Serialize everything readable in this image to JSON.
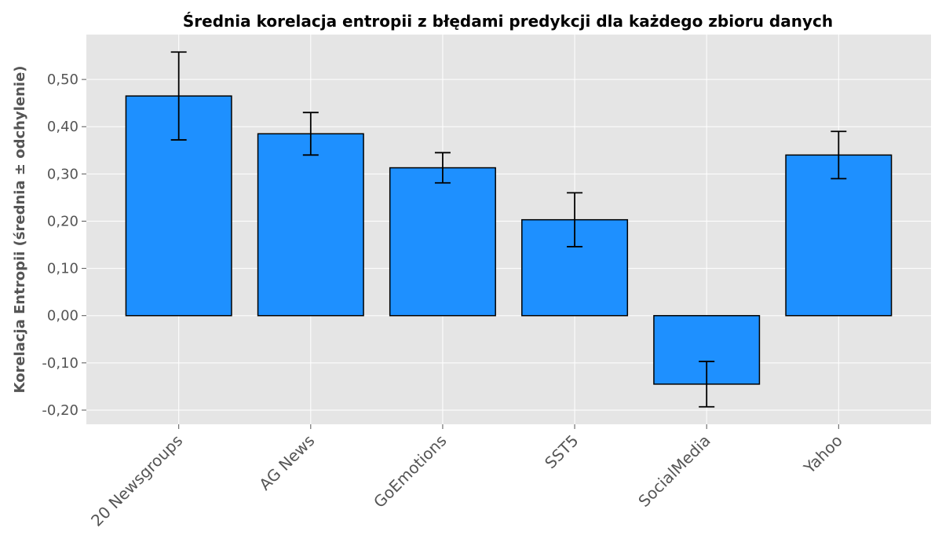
{
  "chart_data": {
    "type": "bar",
    "title": "Średnia korelacja entropii z błędami predykcji dla każdego zbioru danych",
    "xlabel": "",
    "ylabel": "Korelacja Entropii (średnia ± odchylenie)",
    "categories": [
      "20 Newsgroups",
      "AG News",
      "GoEmotions",
      "SST5",
      "SocialMedia",
      "Yahoo"
    ],
    "values": [
      0.465,
      0.385,
      0.313,
      0.203,
      -0.145,
      0.34
    ],
    "errors": [
      0.093,
      0.045,
      0.032,
      0.057,
      0.048,
      0.05
    ],
    "ylim": [
      -0.23,
      0.595
    ],
    "yticks": [
      -0.2,
      -0.1,
      0.0,
      0.1,
      0.2,
      0.3,
      0.4,
      0.5
    ],
    "ytick_labels": [
      "-0,20",
      "-0,10",
      "0,00",
      "0,10",
      "0,20",
      "0,30",
      "0,40",
      "0,50"
    ],
    "grid": true,
    "colors": {
      "bar": "#1e90ff",
      "edge": "#000000",
      "background": "#e5e5e5",
      "grid": "#ffffff",
      "errorbar": "#000000"
    }
  }
}
